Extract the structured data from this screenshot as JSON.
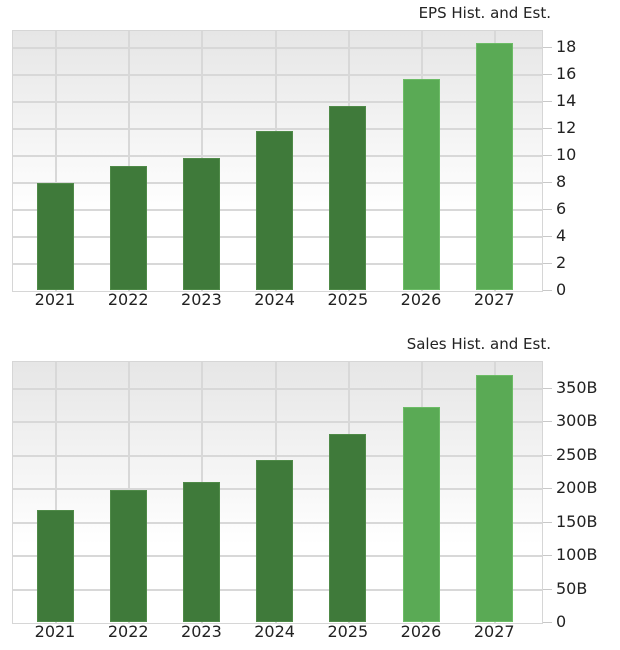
{
  "chart_data": [
    {
      "type": "bar",
      "title": "EPS Hist. and Est.",
      "categories": [
        "2021",
        "2022",
        "2023",
        "2024",
        "2025",
        "2026",
        "2027"
      ],
      "values": [
        7.9,
        9.2,
        9.8,
        11.8,
        13.6,
        15.6,
        18.3
      ],
      "bar_kind": [
        "historical",
        "historical",
        "historical",
        "historical",
        "historical",
        "estimate",
        "estimate"
      ],
      "xlabel": "",
      "ylabel": "",
      "ylim": [
        0,
        19.2
      ],
      "yticks": [
        0,
        2,
        4,
        6,
        8,
        10,
        12,
        14,
        16,
        18
      ],
      "ytick_labels": [
        "0",
        "2",
        "4",
        "6",
        "8",
        "10",
        "12",
        "14",
        "16",
        "18"
      ],
      "y_axis_position": "right",
      "grid": true,
      "legend": null
    },
    {
      "type": "bar",
      "title": "Sales Hist. and Est.",
      "categories": [
        "2021",
        "2022",
        "2023",
        "2024",
        "2025",
        "2026",
        "2027"
      ],
      "values": [
        167,
        197,
        210,
        243,
        281,
        322,
        370
      ],
      "units": "B",
      "bar_kind": [
        "historical",
        "historical",
        "historical",
        "historical",
        "historical",
        "estimate",
        "estimate"
      ],
      "xlabel": "",
      "ylabel": "",
      "ylim": [
        0,
        390
      ],
      "yticks": [
        0,
        50,
        100,
        150,
        200,
        250,
        300,
        350
      ],
      "ytick_labels": [
        "0",
        "50B",
        "100B",
        "150B",
        "200B",
        "250B",
        "300B",
        "350B"
      ],
      "y_axis_position": "right",
      "grid": true,
      "legend": null
    }
  ],
  "colors": {
    "historical": "#3f7a3a",
    "estimate": "#5aaa55",
    "grid": "#d8d8d8",
    "background_top": "#e6e6e6",
    "background_bottom": "#ffffff"
  }
}
